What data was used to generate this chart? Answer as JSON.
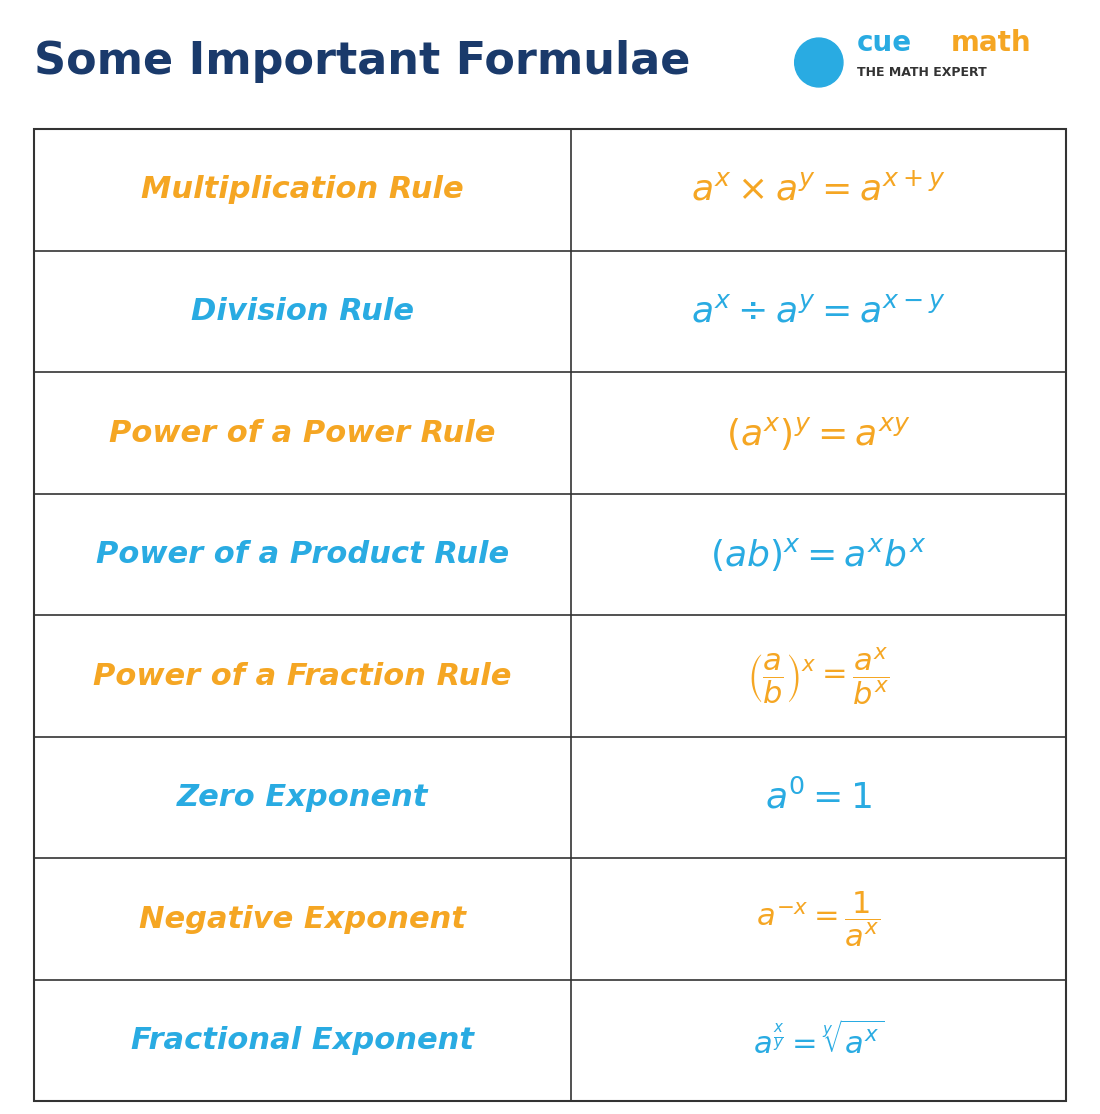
{
  "title": "Some Important Formulae",
  "title_color": "#1a3a6b",
  "title_fontsize": 32,
  "background_color": "#ffffff",
  "table_border_color": "#333333",
  "orange_color": "#f5a623",
  "blue_color": "#29abe2",
  "dark_blue_color": "#1a3a6b",
  "rows": [
    {
      "rule_name": "Multiplication Rule",
      "rule_color": "orange",
      "formula_latex": "$\\mathbf{\\mathit{a^x \\times a^y = a^{x+y}}}$",
      "formula_color": "orange"
    },
    {
      "rule_name": "Division Rule",
      "rule_color": "blue",
      "formula_latex": "$\\mathbf{\\mathit{a^x \\div a^y = a^{x-y}}}$",
      "formula_color": "blue"
    },
    {
      "rule_name": "Power of a Power Rule",
      "rule_color": "orange",
      "formula_latex": "$\\mathbf{\\mathit{(a^x)^y = a^{xy}}}$",
      "formula_color": "orange"
    },
    {
      "rule_name": "Power of a Product Rule",
      "rule_color": "blue",
      "formula_latex": "$\\mathbf{\\mathit{(ab)^x = a^x b^x}}$",
      "formula_color": "blue"
    },
    {
      "rule_name": "Power of a Fraction Rule",
      "rule_color": "orange",
      "formula_latex": "$\\mathbf{\\mathit{\\left(\\dfrac{a}{b}\\right)^x = \\dfrac{a^x}{b^x}}}$",
      "formula_color": "orange"
    },
    {
      "rule_name": "Zero Exponent",
      "rule_color": "blue",
      "formula_latex": "$\\mathbf{\\mathit{a^0 = 1}}$",
      "formula_color": "blue"
    },
    {
      "rule_name": "Negative Exponent",
      "rule_color": "orange",
      "formula_latex": "$\\mathbf{\\mathit{a^{-x} = \\dfrac{1}{a^x}}}$",
      "formula_color": "orange"
    },
    {
      "rule_name": "Fractional Exponent",
      "rule_color": "blue",
      "formula_latex": "$\\mathbf{\\mathit{a^{\\frac{x}{y}} = \\sqrt[y]{a^x}}}$",
      "formula_color": "blue"
    }
  ]
}
